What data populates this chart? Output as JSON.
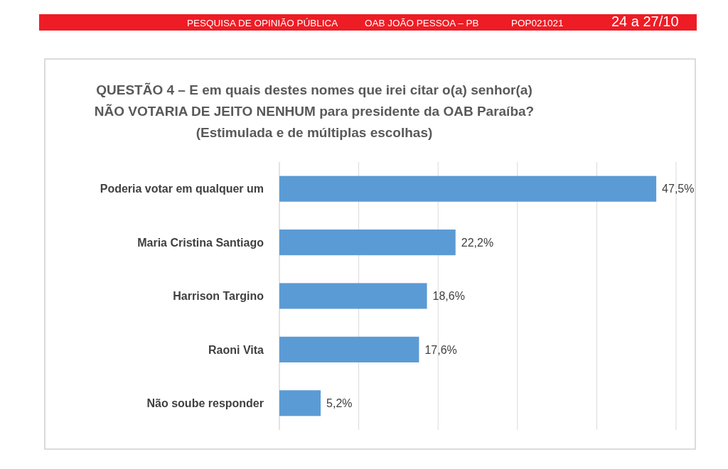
{
  "chart_data": {
    "type": "bar",
    "orientation": "horizontal",
    "title": "QUESTÃO 4 – E em quais destes nomes que irei citar o(a) senhor(a) NÃO VOTARIA DE JEITO NENHUM para presidente da OAB Paraíba?",
    "subtitle": "(Estimulada e de múltiplas escolhas)",
    "annotations": [
      "PESQUISA DE OPINIÃO PÚBLICA",
      "OAB JOÃO PESSOA – PB",
      "POP021021",
      "24 a 27/10"
    ],
    "categories": [
      "Poderia votar em qualquer um",
      "Maria Cristina Santiago",
      "Harrison Targino",
      "Raoni Vita",
      "Não soube responder"
    ],
    "values": [
      47.5,
      22.2,
      18.6,
      17.6,
      5.2
    ],
    "value_labels": [
      "47,5%",
      "22,2%",
      "18,6%",
      "17,6%",
      "5,2%"
    ],
    "color": "#5b9bd5",
    "xlim": [
      0,
      50
    ],
    "xticks": [
      {
        "value": 0,
        "label": null
      },
      {
        "value": 10,
        "label": null
      },
      {
        "value": 20,
        "label": null
      },
      {
        "value": 30,
        "label": null
      },
      {
        "value": 40,
        "label": null
      },
      {
        "value": 50,
        "label": null
      }
    ],
    "grid": "x",
    "tick_labels": "y"
  }
}
